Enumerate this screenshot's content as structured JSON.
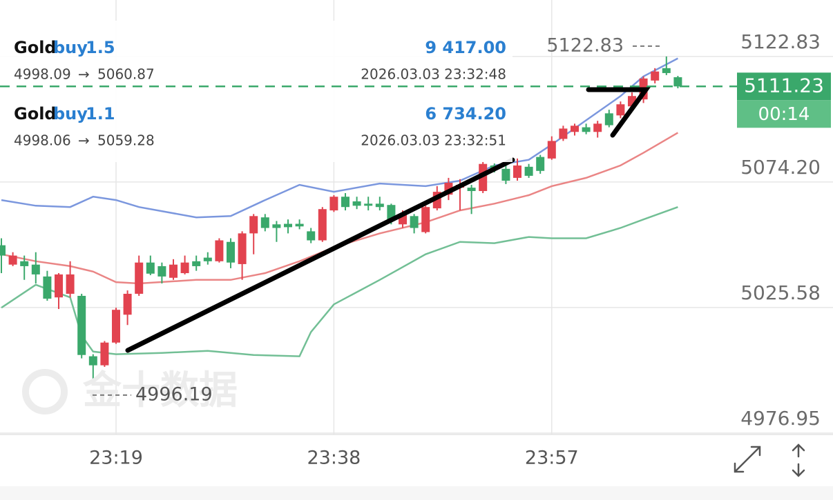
{
  "chart_data": {
    "type": "candlestick",
    "categories": [
      null,
      null,
      null,
      null,
      null,
      null,
      null,
      null,
      null,
      null,
      "23:19",
      null,
      null,
      null,
      null,
      null,
      null,
      null,
      null,
      null,
      null,
      null,
      null,
      null,
      null,
      null,
      null,
      null,
      null,
      "23:38",
      null,
      null,
      null,
      null,
      null,
      null,
      null,
      null,
      null,
      null,
      null,
      null,
      null,
      null,
      null,
      null,
      null,
      null,
      "23:57",
      null,
      null,
      null,
      null,
      null,
      null,
      null,
      null,
      null,
      null,
      null
    ],
    "open": [
      5049.7,
      5042.2,
      5043.5,
      5042.2,
      5037.6,
      5029.5,
      5030.9,
      5030.1,
      5006.7,
      5003.2,
      5012.0,
      5022.8,
      5030.9,
      5043.0,
      5041.6,
      5037.1,
      5038.9,
      5043.5,
      5044.9,
      5043.5,
      5051.0,
      5042.4,
      5054.3,
      5060.5,
      5057.8,
      5058.0,
      5058.0,
      5055.1,
      5051.6,
      5063.2,
      5068.5,
      5066.7,
      5065.8,
      5065.8,
      5065.3,
      5057.8,
      5061.0,
      5054.8,
      5064.0,
      5069.3,
      5072.0,
      5072.0,
      5070.7,
      5080.6,
      5079.3,
      5075.8,
      5080.1,
      5083.9,
      5083.3,
      5090.9,
      5093.6,
      5095.4,
      5093.6,
      5100.8,
      5100.0,
      5103.5,
      5106.2,
      5113.5,
      5118.3,
      5114.8
    ],
    "high": [
      5052.4,
      5047.0,
      5045.7,
      5047.0,
      5039.8,
      5038.9,
      5043.5,
      5030.9,
      5007.5,
      5012.6,
      5025.5,
      5032.2,
      5045.7,
      5045.7,
      5043.0,
      5044.3,
      5045.7,
      5045.7,
      5047.0,
      5052.4,
      5052.4,
      5055.1,
      5061.8,
      5061.8,
      5059.1,
      5059.7,
      5059.7,
      5056.4,
      5064.5,
      5069.1,
      5069.9,
      5068.5,
      5068.5,
      5068.5,
      5065.8,
      5063.2,
      5061.8,
      5065.0,
      5072.6,
      5075.8,
      5075.3,
      5073.1,
      5082.0,
      5081.4,
      5080.6,
      5083.3,
      5081.2,
      5084.7,
      5091.9,
      5096.0,
      5096.8,
      5096.8,
      5097.9,
      5102.2,
      5105.4,
      5108.9,
      5115.1,
      5118.3,
      5122.83,
      5115.3
    ],
    "low": [
      5038.9,
      5041.6,
      5036.3,
      5034.9,
      5028.2,
      5025.0,
      5029.5,
      5005.9,
      4996.19,
      5002.6,
      5011.5,
      5018.8,
      5030.1,
      5038.1,
      5034.9,
      5036.3,
      5038.4,
      5039.8,
      5042.2,
      5043.0,
      5040.8,
      5036.3,
      5046.2,
      5055.1,
      5051.0,
      5054.3,
      5055.9,
      5050.5,
      5051.0,
      5062.6,
      5063.2,
      5063.7,
      5063.2,
      5063.2,
      5057.8,
      5056.4,
      5054.3,
      5054.3,
      5063.2,
      5067.2,
      5063.2,
      5061.8,
      5069.9,
      5077.9,
      5073.4,
      5074.7,
      5075.8,
      5077.4,
      5082.8,
      5090.1,
      5092.2,
      5092.7,
      5091.4,
      5095.4,
      5098.9,
      5102.2,
      5104.8,
      5112.4,
      5115.6,
      5110.5
    ],
    "close": [
      5045.7,
      5045.7,
      5041.6,
      5038.4,
      5029.0,
      5038.4,
      5038.4,
      5007.2,
      5003.2,
      5012.0,
      5024.7,
      5030.9,
      5043.0,
      5038.7,
      5037.6,
      5042.2,
      5043.0,
      5041.6,
      5043.5,
      5051.6,
      5043.0,
      5054.3,
      5061.0,
      5056.4,
      5056.4,
      5056.7,
      5057.0,
      5051.6,
      5063.7,
      5068.5,
      5064.5,
      5065.0,
      5065.0,
      5064.5,
      5059.7,
      5061.8,
      5056.4,
      5064.5,
      5070.4,
      5073.9,
      5073.1,
      5070.7,
      5081.2,
      5079.0,
      5074.7,
      5080.6,
      5076.6,
      5078.5,
      5090.1,
      5094.9,
      5096.0,
      5093.6,
      5096.8,
      5096.2,
      5104.3,
      5107.5,
      5114.3,
      5117.0,
      5116.4,
      5111.23
    ],
    "up_color": "#e2434f",
    "down_color": "#3aa86b",
    "bands": [
      {
        "color": "#7b97de",
        "x": [
          0,
          3,
          6,
          8,
          10,
          12,
          17,
          20,
          23,
          26,
          29,
          33,
          37,
          40,
          43,
          46,
          48,
          51,
          54,
          56,
          59
        ],
        "values": [
          5067.2,
          5065.0,
          5064.5,
          5068.5,
          5067.2,
          5064.5,
          5060.5,
          5061.0,
          5067.2,
          5073.1,
          5070.4,
          5073.6,
          5072.6,
          5074.7,
          5080.6,
          5082.8,
          5088.7,
          5098.1,
          5107.5,
          5115.1,
          5122.1
        ]
      },
      {
        "color": "#ea8585",
        "x": [
          0,
          3,
          6,
          8,
          10,
          12,
          17,
          20,
          23,
          26,
          29,
          33,
          37,
          40,
          43,
          46,
          48,
          51,
          54,
          56,
          59
        ],
        "values": [
          5046.2,
          5043.5,
          5041.6,
          5039.5,
          5035.4,
          5034.9,
          5036.3,
          5036.3,
          5038.9,
          5043.5,
          5048.9,
          5054.3,
          5058.6,
          5063.2,
          5065.8,
          5069.1,
          5072.6,
          5075.8,
          5080.6,
          5085.5,
          5093.3
        ]
      },
      {
        "color": "#72bf95",
        "x": [
          0,
          3,
          6,
          7,
          8,
          10,
          14,
          18,
          22,
          26,
          27,
          29,
          33,
          37,
          40,
          43,
          46,
          48,
          51,
          54,
          56,
          59
        ],
        "values": [
          5025.5,
          5034.4,
          5029.5,
          5014.7,
          5008.5,
          5007.5,
          5008.0,
          5008.8,
          5007.2,
          5006.7,
          5016.1,
          5026.8,
          5036.3,
          5046.2,
          5051.0,
          5050.5,
          5052.9,
          5052.4,
          5052.4,
          5056.4,
          5059.7,
          5064.5
        ]
      }
    ],
    "ylim": [
      4976.4,
      5144.7
    ],
    "yticks": [
      4976.95,
      5025.58,
      {
        "value": 5074.2,
        "label": "5074.20"
      },
      5122.83
    ],
    "grid": true,
    "countdown": "00:14",
    "watermark": "金十数据",
    "orders": [
      {
        "symbol": "Gold",
        "side": "buy",
        "lots": 1.5,
        "profit": "9 417.00",
        "open_price": 4998.09,
        "close_price": 5060.87,
        "time": "2026.03.03 23:32:48"
      },
      {
        "symbol": "Gold",
        "side": "buy",
        "lots": 1.1,
        "profit": "6 734.20",
        "open_price": 4998.06,
        "close_price": 5059.28,
        "time": "2026.03.03 23:32:51"
      }
    ]
  }
}
